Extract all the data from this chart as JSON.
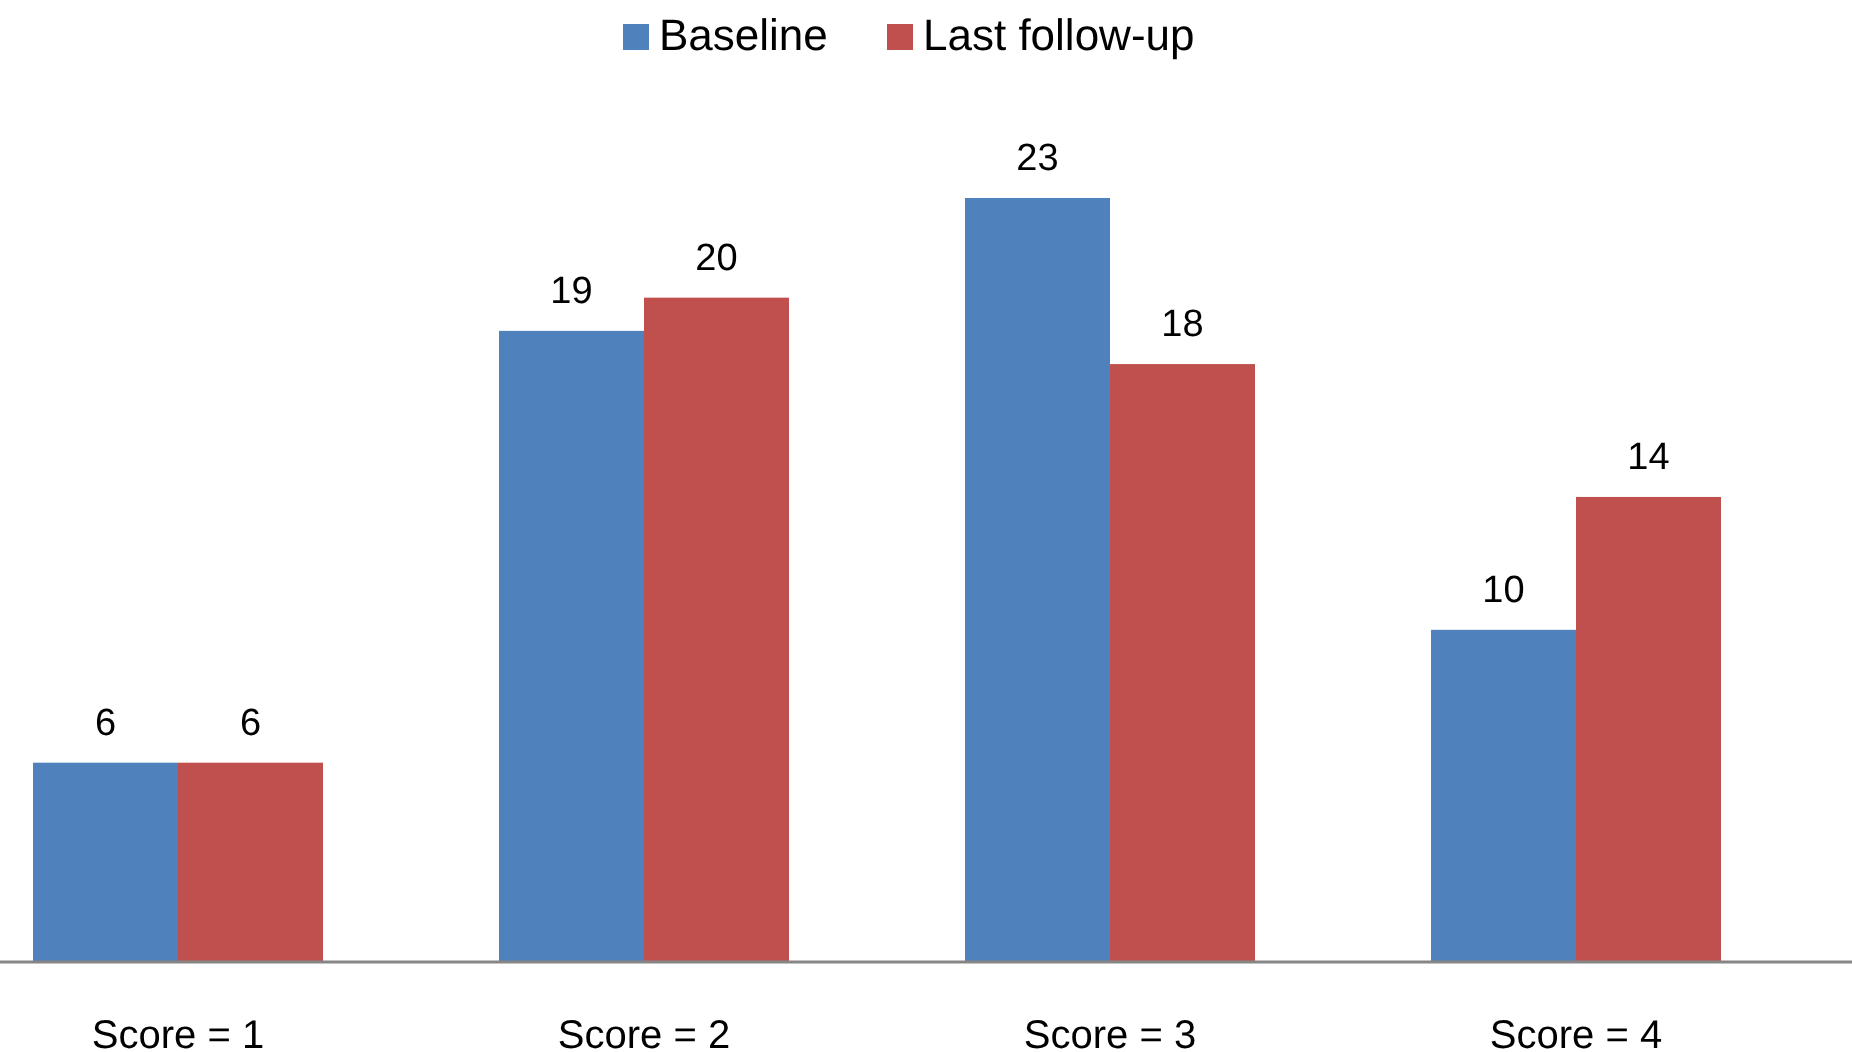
{
  "chart_data": {
    "type": "bar",
    "categories": [
      "Score = 1",
      "Score = 2",
      "Score = 3",
      "Score = 4"
    ],
    "series": [
      {
        "name": "Baseline",
        "color": "#4f81bd",
        "values": [
          6,
          19,
          23,
          10
        ]
      },
      {
        "name": "Last follow-up",
        "color": "#c0504d",
        "values": [
          6,
          20,
          18,
          14
        ]
      }
    ],
    "data_labels": true,
    "legend": "top"
  }
}
